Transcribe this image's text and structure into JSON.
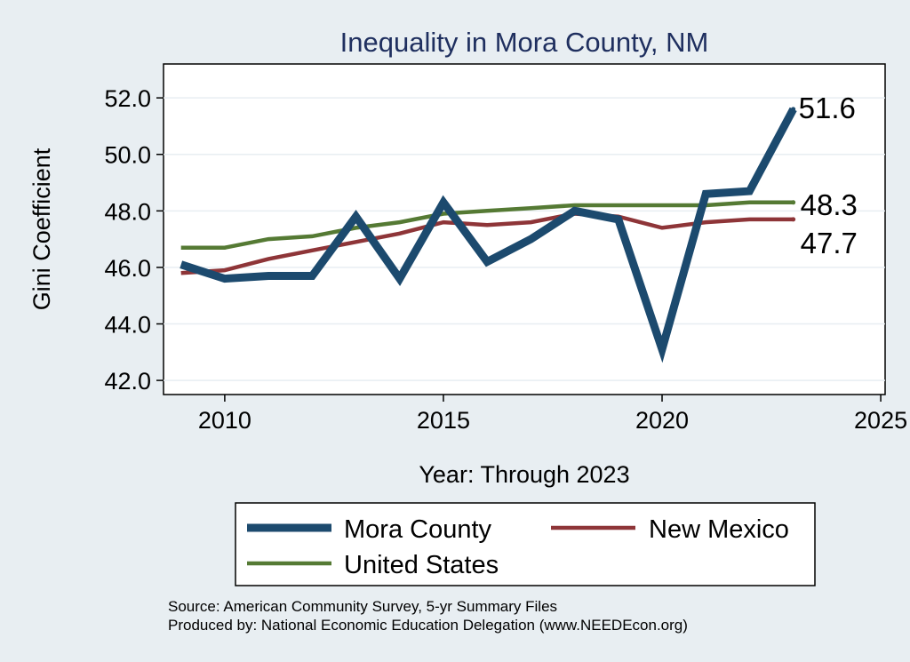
{
  "chart_data": {
    "type": "line",
    "title": "Inequality in Mora County, NM",
    "xlabel": "Year: Through 2023",
    "ylabel": "Gini Coefficient",
    "xlim": [
      2008.6,
      2025.1
    ],
    "ylim": [
      41.5,
      53.2
    ],
    "x_ticks": [
      2010,
      2015,
      2020,
      2025
    ],
    "x_tick_labels": [
      "2010",
      "2015",
      "2020",
      "2025"
    ],
    "y_ticks": [
      42,
      44,
      46,
      48,
      50,
      52
    ],
    "y_tick_labels": [
      "42.0",
      "44.0",
      "46.0",
      "48.0",
      "50.0",
      "52.0"
    ],
    "grid": true,
    "x": [
      2009,
      2010,
      2011,
      2012,
      2013,
      2014,
      2015,
      2016,
      2017,
      2018,
      2019,
      2020,
      2021,
      2022,
      2023
    ],
    "series": [
      {
        "name": "Mora County",
        "color": "#1c4a6e",
        "values": [
          46.1,
          45.6,
          45.7,
          45.7,
          47.8,
          45.6,
          48.3,
          46.2,
          47.0,
          48.0,
          47.7,
          43.1,
          48.6,
          48.7,
          51.6
        ],
        "end_label": "51.6"
      },
      {
        "name": "New Mexico",
        "color": "#8e3538",
        "values": [
          45.8,
          45.9,
          46.3,
          46.6,
          46.9,
          47.2,
          47.6,
          47.5,
          47.6,
          47.9,
          47.8,
          47.4,
          47.6,
          47.7,
          47.7
        ],
        "end_label": "47.7"
      },
      {
        "name": "United States",
        "color": "#557a34",
        "values": [
          46.7,
          46.7,
          47.0,
          47.1,
          47.4,
          47.6,
          47.9,
          48.0,
          48.1,
          48.2,
          48.2,
          48.2,
          48.2,
          48.3,
          48.3
        ],
        "end_label": "48.3"
      }
    ],
    "legend": {
      "placement": "bottom",
      "items": [
        "Mora County",
        "New Mexico",
        "United States"
      ]
    }
  },
  "source": {
    "line1": "Source: American Community Survey, 5-yr Summary Files",
    "line2": "Produced by: National Economic Education Delegation (www.NEEDEcon.org)"
  }
}
